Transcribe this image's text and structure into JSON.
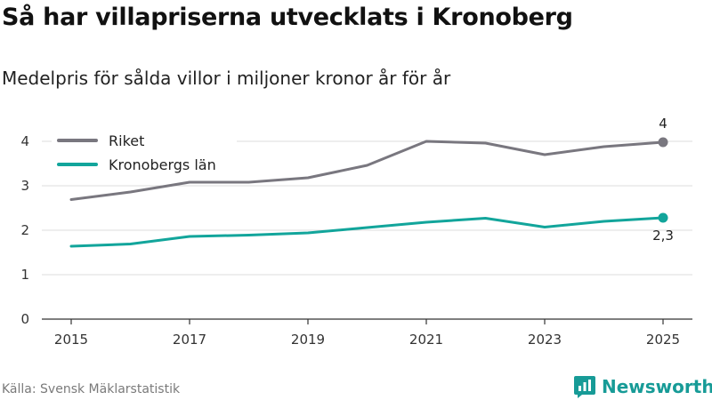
{
  "title": "Så har villapriserna utvecklats i Kronoberg",
  "subtitle": "Medelpris för sålda villor i miljoner kronor år för år",
  "source": "Källa: Svensk Mäklarstatistik",
  "brand": {
    "name": "Newsworthy",
    "logo_icon": "bar-chart-speech-bubble-icon"
  },
  "colors": {
    "riket": "#79777f",
    "kronoberg": "#12a59b",
    "grid": "#dcdcdc",
    "brand": "#179b97"
  },
  "chart_data": {
    "type": "line",
    "title": "Så har villapriserna utvecklats i Kronoberg",
    "subtitle": "Medelpris för sålda villor i miljoner kronor år för år",
    "xlabel": "",
    "ylabel": "",
    "x": [
      2015,
      2016,
      2017,
      2018,
      2019,
      2020,
      2021,
      2022,
      2023,
      2024,
      2025
    ],
    "x_ticks": [
      "2015",
      "2017",
      "2019",
      "2021",
      "2023",
      "2025"
    ],
    "y_ticks": [
      "0",
      "1",
      "2",
      "3",
      "4"
    ],
    "ylim": [
      0,
      4.5
    ],
    "grid": true,
    "legend_position": "top-left",
    "series": [
      {
        "name": "Riket",
        "values": [
          2.69,
          2.86,
          3.08,
          3.08,
          3.18,
          3.46,
          4.0,
          3.96,
          3.7,
          3.88,
          3.98
        ],
        "end_label": "4"
      },
      {
        "name": "Kronobergs län",
        "values": [
          1.64,
          1.69,
          1.86,
          1.89,
          1.94,
          2.06,
          2.18,
          2.27,
          2.07,
          2.2,
          2.28
        ],
        "end_label": "2,3"
      }
    ]
  }
}
